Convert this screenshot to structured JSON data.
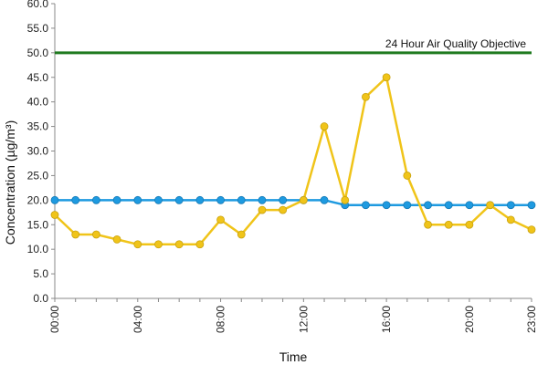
{
  "chart_data": {
    "type": "line",
    "title": "",
    "xlabel": "Time",
    "ylabel": "Concentration (µg/m³)",
    "ylim": [
      0,
      60
    ],
    "y_ticks": [
      "0.0",
      "5.0",
      "10.0",
      "15.0",
      "20.0",
      "25.0",
      "30.0",
      "35.0",
      "40.0",
      "45.0",
      "50.0",
      "55.0",
      "60.0"
    ],
    "x_tick_labels": [
      "00:00",
      "04:00",
      "08:00",
      "12:00",
      "16:00",
      "20:00",
      "23:00"
    ],
    "x_tick_hours": [
      0,
      4,
      8,
      12,
      16,
      20,
      23
    ],
    "grid": false,
    "x": [
      0,
      1,
      2,
      3,
      4,
      5,
      6,
      7,
      8,
      9,
      10,
      11,
      12,
      13,
      14,
      15,
      16,
      17,
      18,
      19,
      20,
      21,
      22,
      23
    ],
    "series": [
      {
        "name": "",
        "color": "#1e9ae0",
        "values": [
          20,
          20,
          20,
          20,
          20,
          20,
          20,
          20,
          20,
          20,
          20,
          20,
          20,
          20,
          19,
          19,
          19,
          19,
          19,
          19,
          19,
          19,
          19,
          19
        ]
      },
      {
        "name": "",
        "color": "#f0c419",
        "values": [
          17,
          13,
          13,
          12,
          11,
          11,
          11,
          11,
          16,
          13,
          18,
          18,
          20,
          35,
          20,
          41,
          45,
          25,
          15,
          15,
          15,
          19,
          16,
          14
        ]
      }
    ],
    "objective": {
      "label": "24 Hour Air Quality Objective",
      "value": 50,
      "color": "#1f7a1f"
    }
  }
}
